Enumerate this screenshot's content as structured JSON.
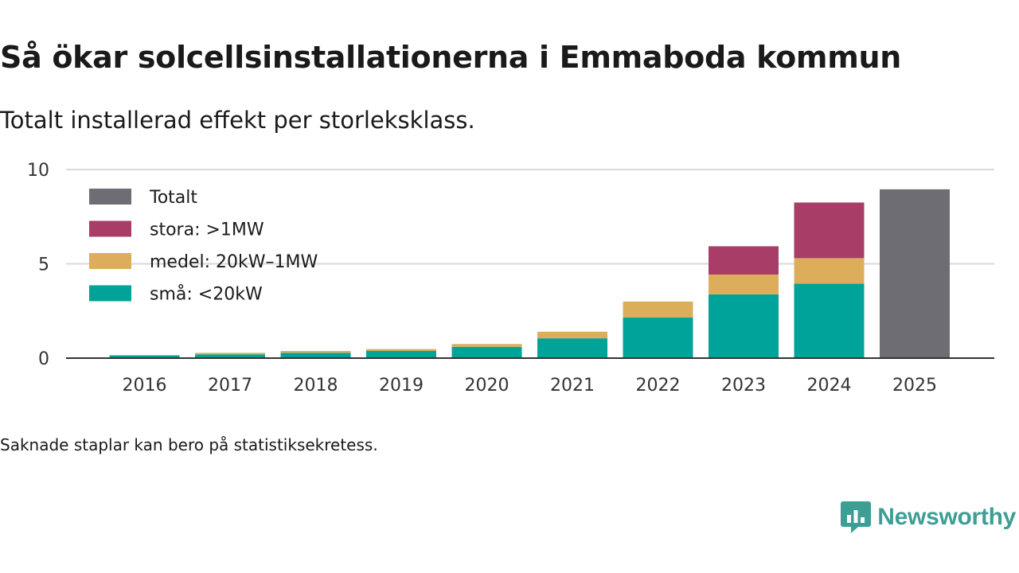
{
  "title": "Så ökar solcellsinstallationerna i Emmaboda kommun",
  "subtitle": "Totalt installerad effekt per storleksklass.",
  "footnote": "Saknade staplar kan bero på statistiksekretess.",
  "brand": {
    "name": "Newsworthy",
    "color": "#3d9e95"
  },
  "chart_data": {
    "type": "bar",
    "stacked": true,
    "title": "",
    "xlabel": "",
    "ylabel": "",
    "ylim": [
      0,
      10
    ],
    "y_ticks": [
      0,
      5,
      10
    ],
    "grid": true,
    "legend_position": "top-left",
    "categories": [
      "2016",
      "2017",
      "2018",
      "2019",
      "2020",
      "2021",
      "2022",
      "2023",
      "2024",
      "2025"
    ],
    "series": [
      {
        "name": "små: <20kW",
        "color": "#00a39a",
        "values": [
          0.15,
          0.2,
          0.28,
          0.38,
          0.6,
          1.05,
          2.15,
          3.38,
          3.95,
          0
        ]
      },
      {
        "name": "medel: 20kW–1MW",
        "color": "#dcae5c",
        "values": [
          0.0,
          0.08,
          0.1,
          0.1,
          0.15,
          0.35,
          0.85,
          1.05,
          1.35,
          0
        ]
      },
      {
        "name": "stora: >1MW",
        "color": "#a83e68",
        "values": [
          0,
          0,
          0,
          0,
          0,
          0,
          0,
          1.5,
          2.95,
          0
        ]
      },
      {
        "name": "Totalt",
        "color": "#6e6d73",
        "values": [
          0,
          0,
          0,
          0,
          0,
          0,
          0,
          0,
          0,
          8.95
        ]
      }
    ],
    "legend_order": [
      "Totalt",
      "stora: >1MW",
      "medel: 20kW–1MW",
      "små: <20kW"
    ]
  }
}
